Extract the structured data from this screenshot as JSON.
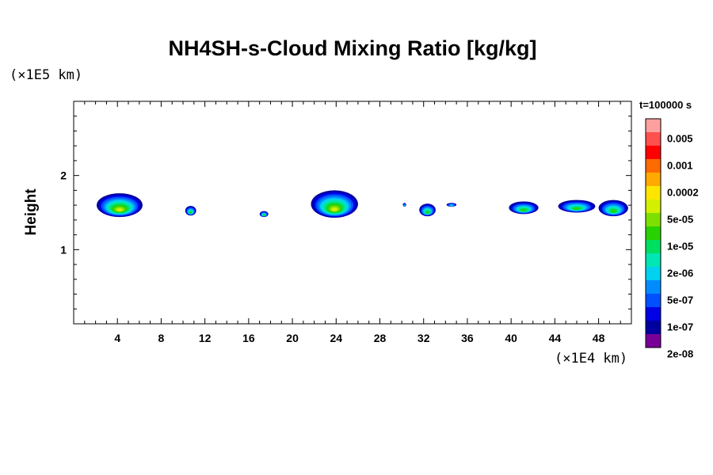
{
  "chart_data": {
    "type": "heatmap",
    "title": "NH4SH-s-Cloud Mixing Ratio [kg/kg]",
    "xlabel": "",
    "ylabel": "Height",
    "x_unit": "(×1E4 km)",
    "y_unit": "(×1E5 km)",
    "time_label": "t=100000 s",
    "xlim": [
      0,
      51
    ],
    "ylim": [
      0,
      3
    ],
    "x_ticks": [
      4,
      8,
      12,
      16,
      20,
      24,
      28,
      32,
      36,
      40,
      44,
      48
    ],
    "y_ticks": [
      1,
      2
    ],
    "colorbar": {
      "labels": [
        "0.005",
        "0.001",
        "0.0002",
        "5e-05",
        "1e-05",
        "2e-06",
        "5e-07",
        "1e-07",
        "2e-08"
      ],
      "colors": [
        "#ffa0a0",
        "#ff5050",
        "#ff0000",
        "#ff6a00",
        "#ffaa00",
        "#ffe600",
        "#d2f000",
        "#7ee000",
        "#28d200",
        "#00e060",
        "#00e6b4",
        "#00d2f0",
        "#008cff",
        "#0050ff",
        "#0000e6",
        "#0000a0",
        "#780096"
      ]
    },
    "clouds": [
      {
        "x": [
          2.1,
          6.3
        ],
        "z": [
          1.44,
          1.76
        ],
        "peak": "5e-05"
      },
      {
        "x": [
          10.2,
          11.2
        ],
        "z": [
          1.46,
          1.59
        ],
        "peak": "1e-05"
      },
      {
        "x": [
          17.0,
          17.8
        ],
        "z": [
          1.44,
          1.52
        ],
        "peak": "1e-05"
      },
      {
        "x": [
          21.7,
          26.0
        ],
        "z": [
          1.43,
          1.8
        ],
        "peak": "5e-05"
      },
      {
        "x": [
          30.1,
          30.4
        ],
        "z": [
          1.58,
          1.63
        ],
        "peak": "5e-07"
      },
      {
        "x": [
          31.6,
          33.1
        ],
        "z": [
          1.45,
          1.62
        ],
        "peak": "1e-05"
      },
      {
        "x": [
          34.1,
          35.0
        ],
        "z": [
          1.58,
          1.63
        ],
        "peak": "2e-06"
      },
      {
        "x": [
          39.8,
          42.5
        ],
        "z": [
          1.48,
          1.65
        ],
        "peak": "1e-05"
      },
      {
        "x": [
          44.3,
          47.7
        ],
        "z": [
          1.5,
          1.67
        ],
        "peak": "1e-05"
      },
      {
        "x": [
          48.0,
          50.7
        ],
        "z": [
          1.45,
          1.67
        ],
        "peak": "1e-05"
      }
    ]
  }
}
